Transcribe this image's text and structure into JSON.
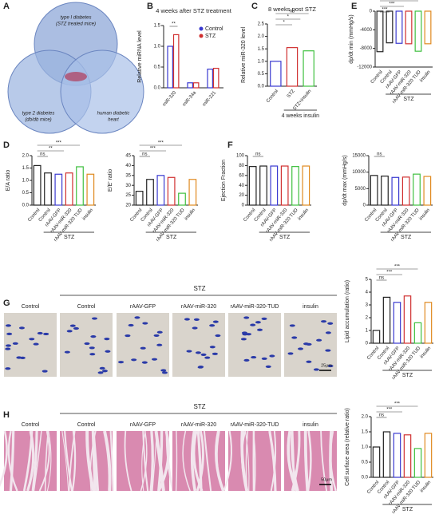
{
  "panels": {
    "letters": [
      "A",
      "B",
      "C",
      "D",
      "E",
      "F",
      "G",
      "H"
    ]
  },
  "venn": {
    "sets": [
      "type I diabetes",
      "(STZ treated mice)",
      "type 2 diabetes",
      "(db/db mice)",
      "human diabetic",
      "heart"
    ]
  },
  "G": {
    "group": "STZ",
    "labels": [
      "Control",
      "Control",
      "rAAV-GFP",
      "rAAV-miR-320",
      "rAAV-miR-320-TUD",
      "insulin"
    ],
    "scale": "25μm"
  },
  "H": {
    "group": "STZ",
    "labels": [
      "Control",
      "Control",
      "rAAV-GFP",
      "rAAV-miR-320",
      "rAAV-miR-320-TUD",
      "insulin"
    ],
    "scale": "50μm"
  },
  "chart_data": [
    {
      "type": "grouped_bar",
      "title": "4 weeks after STZ treatment",
      "ylabel": "Relative miRNA level",
      "categories": [
        "miR-320",
        "miR-34a",
        "miR-221"
      ],
      "series": [
        {
          "name": "Control",
          "color": "#3a3ad0",
          "values": [
            1.0,
            0.12,
            0.45
          ]
        },
        {
          "name": "STZ",
          "color": "#d03030",
          "values": [
            1.28,
            0.12,
            0.47
          ]
        }
      ],
      "ylim": [
        0,
        1.5
      ],
      "yticks": [
        {
          "value": 0,
          "label": "0.0"
        },
        {
          "value": 0.5,
          "label": "0.5"
        },
        {
          "value": 1,
          "label": "1.0"
        },
        {
          "value": 1.5,
          "label": "1.5"
        }
      ],
      "annotations": [
        "**"
      ],
      "legend": "top-right"
    },
    {
      "type": "bar",
      "title": "8 weeks post STZ",
      "ylabel": "Relative miR-320 level",
      "categories": [
        "Control",
        "STZ",
        "STZ+insulin"
      ],
      "values": [
        1.0,
        1.55,
        1.42
      ],
      "colors": [
        "#3a3ad0",
        "#d03030",
        "#40c040"
      ],
      "ylim": [
        0,
        2.5
      ],
      "yticks": [
        {
          "value": 0,
          "label": "0.0"
        },
        {
          "value": 0.5,
          "label": "0.5"
        },
        {
          "value": 1,
          "label": "1.0"
        },
        {
          "value": 1.5,
          "label": "1.5"
        },
        {
          "value": 2,
          "label": "2.0"
        },
        {
          "value": 2.5,
          "label": "2.5"
        }
      ],
      "annotations": [
        "*",
        "*",
        "ns"
      ],
      "note": "4 weeks insulin"
    },
    {
      "type": "bar",
      "ylabel": "dp/dt min (mmHg/s)",
      "categories": [
        "Control",
        "Control",
        "rAAV-GFP",
        "rAAV-miR-320",
        "rAAV-miR-320 TUD",
        "insulin"
      ],
      "values": [
        -8700,
        -6800,
        -6900,
        -7000,
        -8600,
        -7000
      ],
      "colors": [
        "#222222",
        "#222222",
        "#3a3ad0",
        "#d03030",
        "#40c040",
        "#e08a20"
      ],
      "ylim": [
        -12000,
        0
      ],
      "yticks": [
        -12000,
        -8000,
        -4000,
        0
      ],
      "group": "STZ",
      "annotations": [
        "***",
        "***",
        "ns"
      ]
    },
    {
      "type": "bar",
      "ylabel": "E/A ratio",
      "categories": [
        "Control",
        "Control",
        "rAAV-GFP",
        "rAAV-miR-320",
        "rAAV-miR-320 TUD",
        "insulin"
      ],
      "values": [
        1.6,
        1.3,
        1.25,
        1.3,
        1.55,
        1.25
      ],
      "colors": [
        "#222222",
        "#222222",
        "#3a3ad0",
        "#d03030",
        "#40c040",
        "#e08a20"
      ],
      "ylim": [
        0,
        2
      ],
      "yticks": [
        {
          "value": 0,
          "label": "0.0"
        },
        {
          "value": 0.5,
          "label": "0.5"
        },
        {
          "value": 1,
          "label": "1.0"
        },
        {
          "value": 1.5,
          "label": "1.5"
        },
        {
          "value": 2,
          "label": "2.0"
        }
      ],
      "group": "STZ",
      "annotations": [
        "ns",
        "**",
        "***"
      ]
    },
    {
      "type": "bar",
      "ylabel": "E/E' ratio",
      "categories": [
        "Control",
        "Control",
        "rAAV-GFP",
        "rAAV-miR-320",
        "rAAV-miR-320 TUD",
        "insulin"
      ],
      "values": [
        27,
        33,
        35,
        34,
        26,
        33
      ],
      "colors": [
        "#222222",
        "#222222",
        "#3a3ad0",
        "#d03030",
        "#40c040",
        "#e08a20"
      ],
      "ylim": [
        20,
        45
      ],
      "yticks": [
        20,
        25,
        30,
        35,
        40,
        45
      ],
      "group": "STZ",
      "annotations": [
        "ns",
        "***",
        "***"
      ]
    },
    {
      "type": "bar",
      "ylabel": "Ejection Fraction",
      "categories": [
        "Control",
        "Control",
        "rAAV-GFP",
        "rAAV-miR-320",
        "rAAV-miR-320 TUD",
        "insulin"
      ],
      "values": [
        78,
        79,
        79,
        79,
        78,
        79
      ],
      "colors": [
        "#222222",
        "#222222",
        "#3a3ad0",
        "#d03030",
        "#40c040",
        "#e08a20"
      ],
      "ylim": [
        0,
        100
      ],
      "yticks": [
        0,
        20,
        40,
        60,
        80,
        100
      ],
      "group": "STZ",
      "annotations": [
        "ns"
      ]
    },
    {
      "type": "bar",
      "ylabel": "dp/dt max (mmHg/s)",
      "categories": [
        "Control",
        "Control",
        "rAAV-GFP",
        "rAAV-miR-320",
        "rAAV-miR-320 TUD",
        "insulin"
      ],
      "values": [
        9000,
        8800,
        8400,
        8500,
        9400,
        8700
      ],
      "colors": [
        "#222222",
        "#222222",
        "#3a3ad0",
        "#d03030",
        "#40c040",
        "#e08a20"
      ],
      "ylim": [
        0,
        15000
      ],
      "yticks": [
        0,
        5000,
        10000,
        15000
      ],
      "group": "STZ",
      "annotations": [
        "ns"
      ]
    },
    {
      "type": "bar",
      "ylabel": "Lipid accumulation (ratio)",
      "categories": [
        "Control",
        "Control",
        "rAAV-GFP",
        "rAAV-miR-320",
        "rAAV-miR-320 TUD",
        "insulin"
      ],
      "values": [
        1.0,
        3.6,
        3.2,
        3.7,
        1.6,
        3.2
      ],
      "colors": [
        "#222222",
        "#222222",
        "#3a3ad0",
        "#d03030",
        "#40c040",
        "#e08a20"
      ],
      "ylim": [
        0,
        5
      ],
      "yticks": [
        0,
        1,
        2,
        3,
        4,
        5
      ],
      "group": "STZ",
      "annotations": [
        "ns",
        "***",
        "***"
      ]
    },
    {
      "type": "bar",
      "ylabel": "Cell surface area (relative ratio)",
      "categories": [
        "Control",
        "Control",
        "rAAV-GFP",
        "rAAV-miR-320",
        "rAAV-miR-320 TUD",
        "insulin"
      ],
      "values": [
        1.0,
        1.5,
        1.45,
        1.4,
        0.95,
        1.45
      ],
      "colors": [
        "#222222",
        "#222222",
        "#3a3ad0",
        "#d03030",
        "#40c040",
        "#e08a20"
      ],
      "ylim": [
        0,
        2
      ],
      "yticks": [
        {
          "value": 0,
          "label": "0.0"
        },
        {
          "value": 0.5,
          "label": "0.5"
        },
        {
          "value": 1,
          "label": "1.0"
        },
        {
          "value": 1.5,
          "label": "1.5"
        },
        {
          "value": 2,
          "label": "2.0"
        }
      ],
      "group": "STZ",
      "annotations": [
        "ns",
        "***",
        "***"
      ]
    }
  ]
}
